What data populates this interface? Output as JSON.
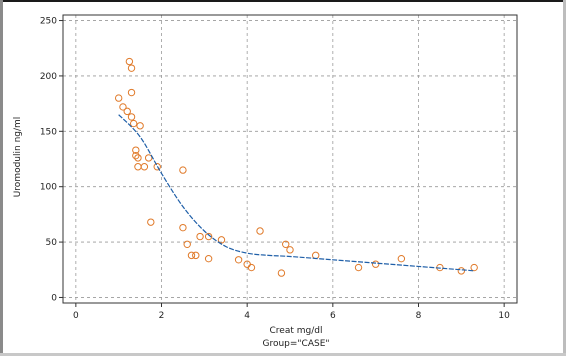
{
  "chart_data": {
    "type": "scatter",
    "title": "",
    "xlabel": "Creat mg/dl",
    "ylabel": "Uromodulin ng/ml",
    "subtitle": "Group=\"CASE\"",
    "xlim": [
      -0.3,
      10.3
    ],
    "ylim": [
      -5,
      255
    ],
    "x_ticks": [
      0,
      2,
      4,
      6,
      8,
      10
    ],
    "y_ticks": [
      0,
      50,
      100,
      150,
      200,
      250
    ],
    "grid": true,
    "legend": "none",
    "series": [
      {
        "kind": "points",
        "color": "#e07a2a",
        "x": [
          1.0,
          1.1,
          1.2,
          1.25,
          1.3,
          1.3,
          1.3,
          1.35,
          1.4,
          1.4,
          1.45,
          1.45,
          1.5,
          1.6,
          1.7,
          1.75,
          1.9,
          2.5,
          2.5,
          2.6,
          2.7,
          2.8,
          2.9,
          3.1,
          3.1,
          3.4,
          3.8,
          4.0,
          4.1,
          4.3,
          4.8,
          4.9,
          5.0,
          5.6,
          6.6,
          7.0,
          7.6,
          8.5,
          9.0,
          9.3
        ],
        "y": [
          180,
          172,
          168,
          213,
          207,
          185,
          163,
          157,
          133,
          128,
          126,
          118,
          155,
          118,
          126,
          68,
          118,
          115,
          63,
          48,
          38,
          38,
          55,
          35,
          55,
          52,
          34,
          30,
          27,
          60,
          22,
          48,
          43,
          38,
          27,
          30,
          35,
          27,
          24,
          27
        ]
      },
      {
        "kind": "smooth-line",
        "color": "#1f5fa8",
        "x": [
          1.0,
          1.5,
          2.0,
          2.5,
          3.0,
          3.5,
          4.0,
          4.5,
          5.0,
          6.0,
          7.0,
          8.0,
          9.0,
          9.3
        ],
        "y": [
          165,
          145,
          112,
          82,
          60,
          46,
          40,
          38,
          37,
          34,
          31,
          28,
          25,
          24
        ]
      }
    ]
  }
}
